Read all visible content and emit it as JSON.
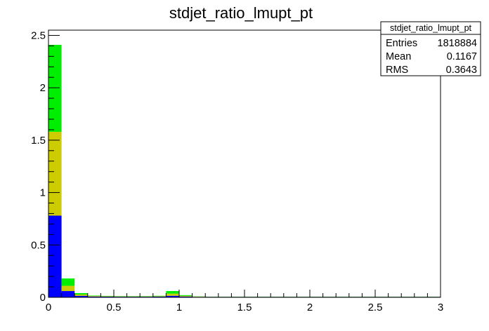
{
  "chart_data": {
    "type": "bar",
    "title": "stdjet_ratio_lmupt_pt",
    "xlabel": "",
    "ylabel": "",
    "xlim": [
      0,
      3
    ],
    "ylim": [
      0,
      2.55
    ],
    "stacked": true,
    "bin_edges": [
      0,
      0.1,
      0.2,
      0.3,
      0.4,
      0.5,
      0.6,
      0.7,
      0.8,
      0.9,
      1.0,
      1.1,
      1.2,
      1.3,
      1.4,
      1.5,
      1.6,
      1.7,
      1.8,
      1.9,
      2.0,
      2.1,
      2.2,
      2.3,
      2.4,
      2.5,
      2.6,
      2.7,
      2.8,
      2.9,
      3.0
    ],
    "series": [
      {
        "color": "#0000ff",
        "values": [
          0.78,
          0.06,
          0.015,
          0.008,
          0.007,
          0.006,
          0.006,
          0.006,
          0.007,
          0.015,
          0.008,
          0.005,
          0.005,
          0.005,
          0.005,
          0.005,
          0.005,
          0.005,
          0.005,
          0.005,
          0.005,
          0.005,
          0.005,
          0.005,
          0.005,
          0.005,
          0.005,
          0.005,
          0.005,
          0.005
        ]
      },
      {
        "color": "#cccc00",
        "values": [
          0.8,
          0.05,
          0.012,
          0.005,
          0.004,
          0.003,
          0.003,
          0.003,
          0.004,
          0.02,
          0.006,
          0.002,
          0.001,
          0.001,
          0.001,
          0.001,
          0.001,
          0.001,
          0.001,
          0.001,
          0.001,
          0.001,
          0.001,
          0.001,
          0.001,
          0.001,
          0.001,
          0.001,
          0.001,
          0.001
        ]
      },
      {
        "color": "#00ee00",
        "values": [
          0.83,
          0.07,
          0.013,
          0.004,
          0.003,
          0.003,
          0.003,
          0.003,
          0.004,
          0.025,
          0.007,
          0.002,
          0.001,
          0.001,
          0.001,
          0.001,
          0.001,
          0.001,
          0.001,
          0.001,
          0.001,
          0.001,
          0.001,
          0.001,
          0.001,
          0.001,
          0.001,
          0.001,
          0.001,
          0.001
        ]
      }
    ],
    "x_ticks": [
      {
        "value": 0,
        "label": "0"
      },
      {
        "value": 0.5,
        "label": "0.5"
      },
      {
        "value": 1,
        "label": "1"
      },
      {
        "value": 1.5,
        "label": "1.5"
      },
      {
        "value": 2,
        "label": "2"
      },
      {
        "value": 2.5,
        "label": "2.5"
      },
      {
        "value": 3,
        "label": "3"
      }
    ],
    "y_ticks": [
      {
        "value": 0,
        "label": "0"
      },
      {
        "value": 0.5,
        "label": "0.5"
      },
      {
        "value": 1,
        "label": "1"
      },
      {
        "value": 1.5,
        "label": "1.5"
      },
      {
        "value": 2,
        "label": "2"
      },
      {
        "value": 2.5,
        "label": "2.5"
      }
    ],
    "stats_box": {
      "title": "stdjet_ratio_lmupt_pt",
      "rows": [
        {
          "label": "Entries",
          "value": "1818884"
        },
        {
          "label": "Mean",
          "value": "0.1167"
        },
        {
          "label": "RMS",
          "value": "0.3643"
        }
      ]
    }
  }
}
